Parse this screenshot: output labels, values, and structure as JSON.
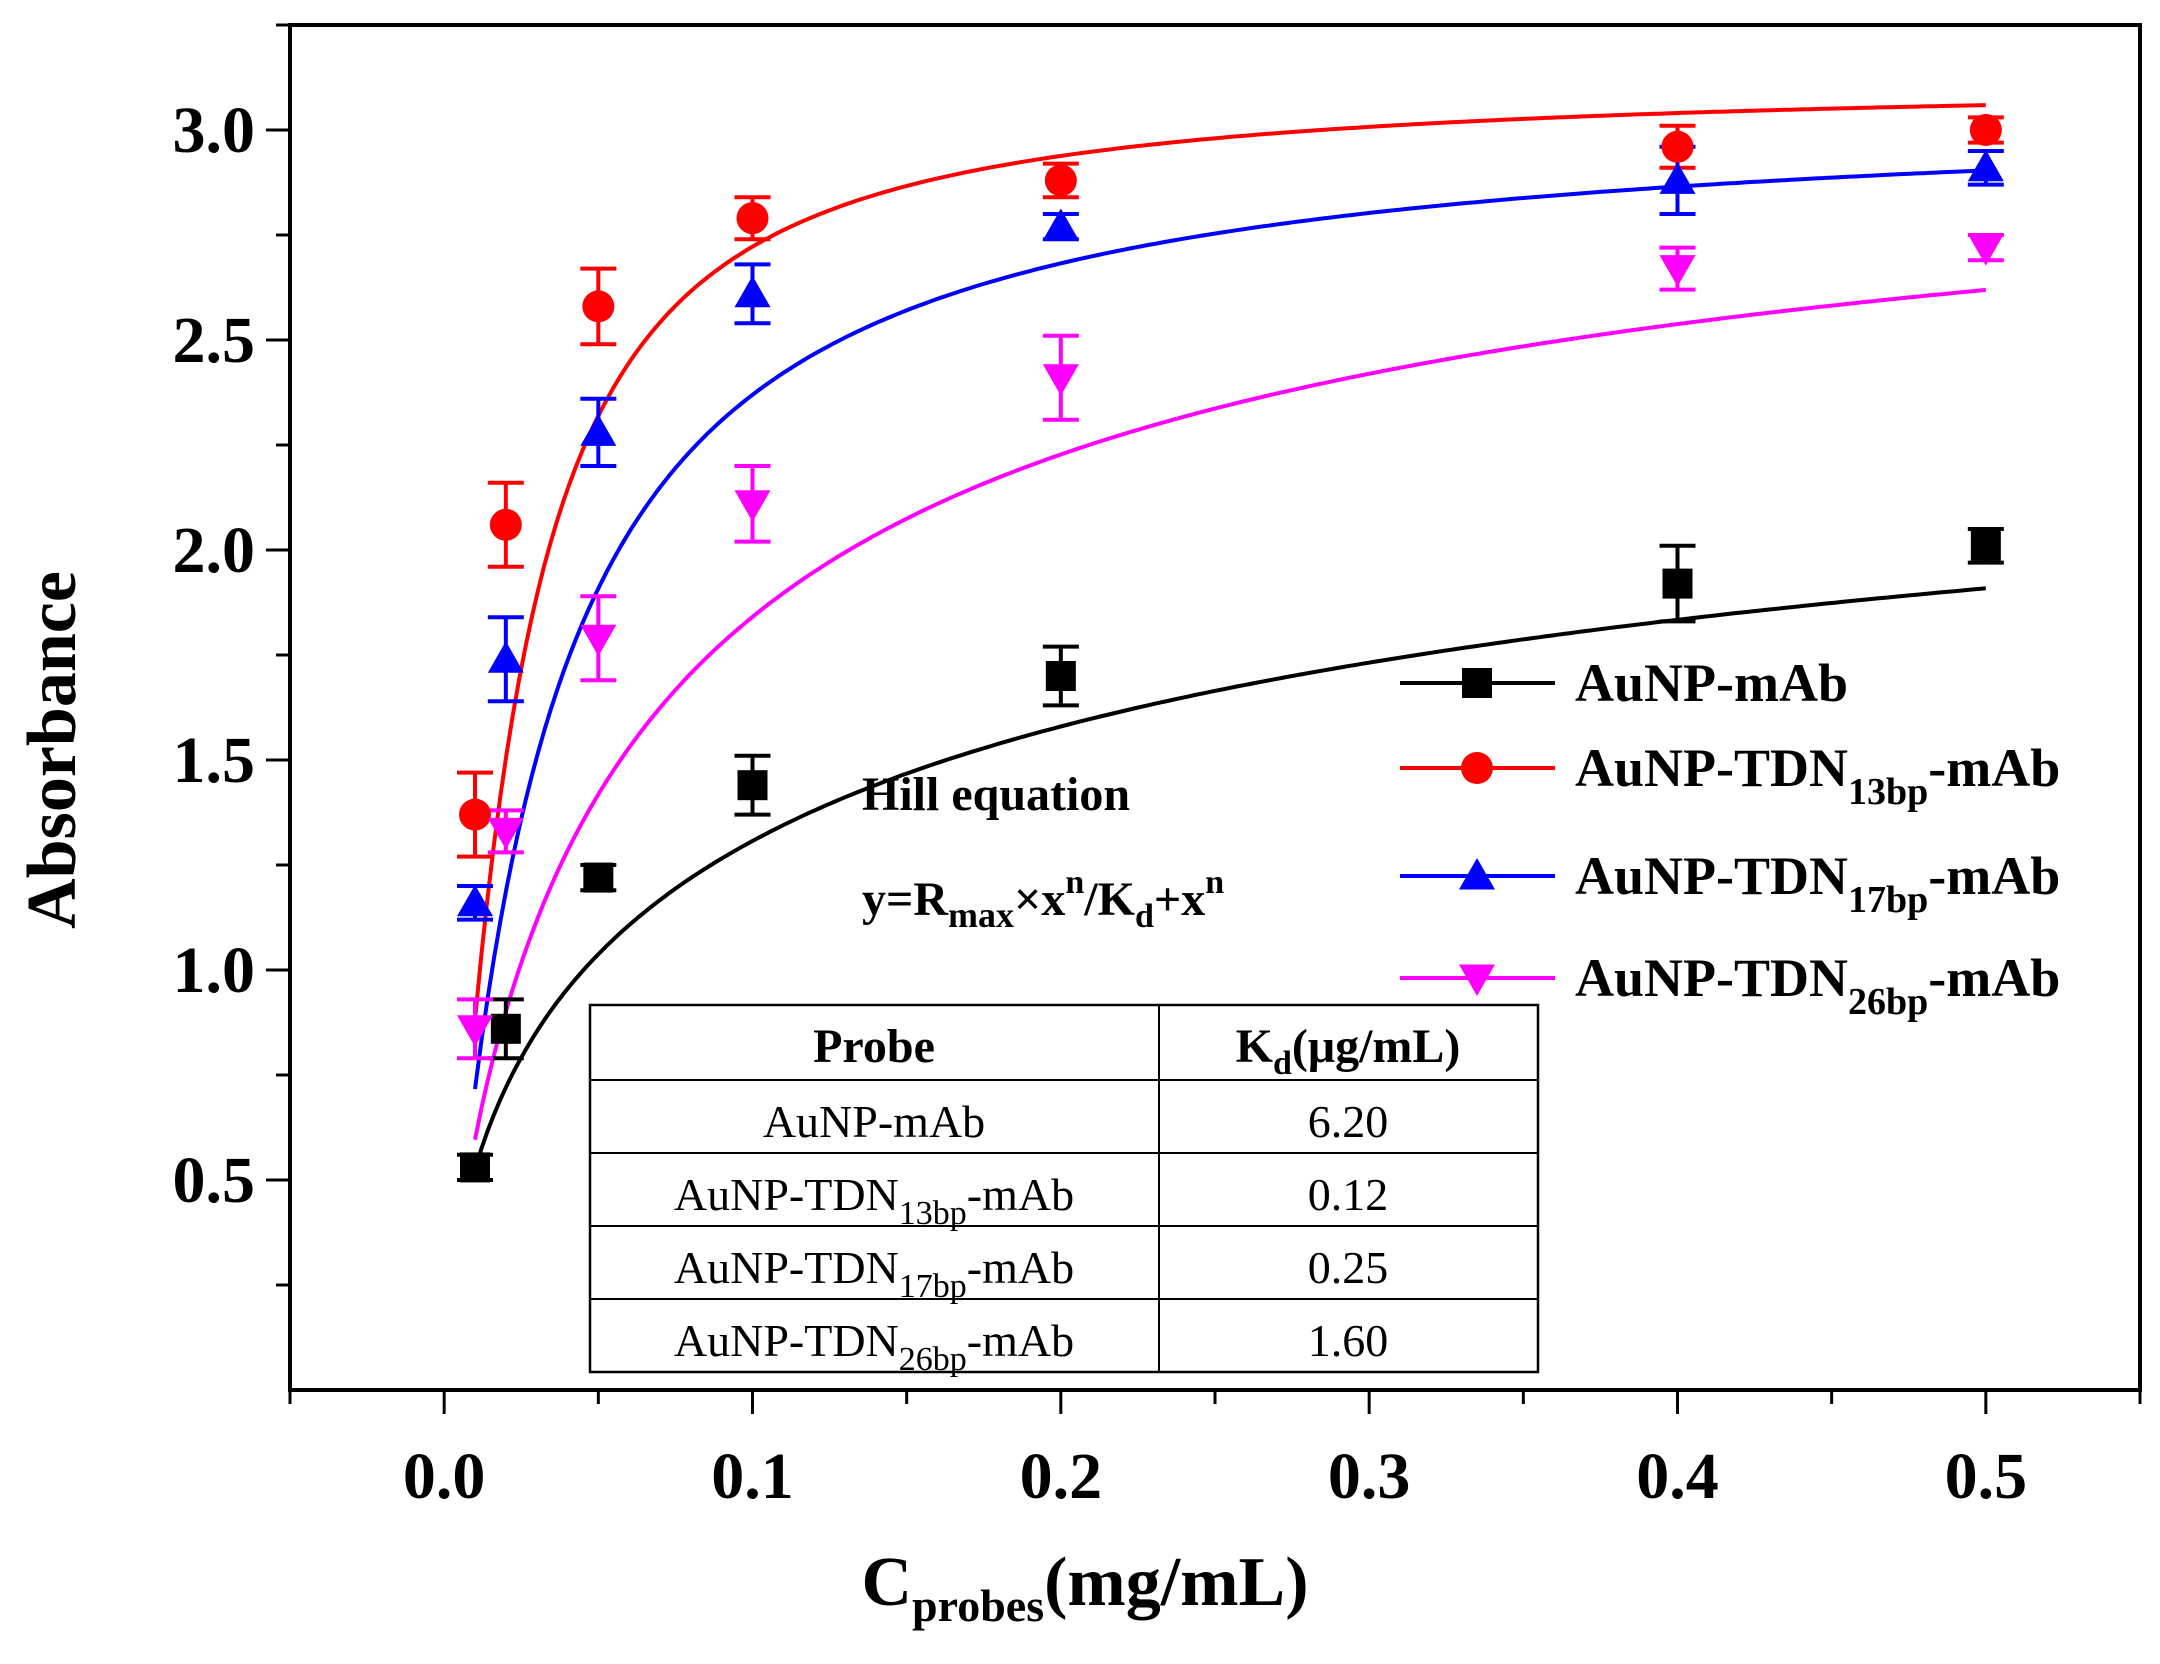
{
  "chart_data": {
    "type": "scatter",
    "xlabel": "C",
    "xlabel_sub": "probes",
    "xlabel_unit": "(mg/mL)",
    "ylabel": "Absorbance",
    "xlim": [
      -0.05,
      0.55
    ],
    "ylim": [
      0.0,
      3.25
    ],
    "x_ticks": [
      "0.0",
      "0.1",
      "0.2",
      "0.3",
      "0.4",
      "0.5"
    ],
    "y_ticks": [
      "0.5",
      "1.0",
      "1.5",
      "2.0",
      "2.5",
      "3.0"
    ],
    "grid": false,
    "legend_position": "right",
    "series": [
      {
        "name": "AuNP-mAb",
        "name_main": "AuNP-mAb",
        "name_sub": "",
        "name_tail": "",
        "color": "#000000",
        "marker": "square",
        "x": [
          0.01,
          0.02,
          0.05,
          0.1,
          0.2,
          0.4,
          0.5
        ],
        "y": [
          0.53,
          0.86,
          1.22,
          1.44,
          1.7,
          1.92,
          2.01
        ],
        "err": [
          0.03,
          0.07,
          0.03,
          0.07,
          0.07,
          0.09,
          0.04
        ],
        "fit": {
          "rmax": 2.69,
          "n": 0.59,
          "k": 0.11
        }
      },
      {
        "name": "AuNP-TDN13bp-mAb",
        "name_main": "AuNP-TDN",
        "name_sub": "13bp",
        "name_tail": "-mAb",
        "color": "#ff0000",
        "marker": "circle",
        "x": [
          0.01,
          0.02,
          0.05,
          0.1,
          0.2,
          0.4,
          0.5
        ],
        "y": [
          1.37,
          2.06,
          2.58,
          2.79,
          2.88,
          2.96,
          3.0
        ],
        "err": [
          0.1,
          0.1,
          0.09,
          0.05,
          0.04,
          0.05,
          0.03
        ],
        "fit": {
          "rmax": 3.12,
          "n": 1.24,
          "k": 0.0212
        }
      },
      {
        "name": "AuNP-TDN17bp-mAb",
        "name_main": "AuNP-TDN",
        "name_sub": "17bp",
        "name_tail": "-mAb",
        "color": "#0000ff",
        "marker": "triangle-up",
        "x": [
          0.01,
          0.02,
          0.05,
          0.1,
          0.2,
          0.4,
          0.5
        ],
        "y": [
          1.16,
          1.74,
          2.28,
          2.61,
          2.77,
          2.88,
          2.91
        ],
        "err": [
          0.04,
          0.1,
          0.08,
          0.07,
          0.03,
          0.08,
          0.04
        ],
        "fit": {
          "rmax": 3.06,
          "n": 1.05,
          "k": 0.0309
        }
      },
      {
        "name": "AuNP-TDN26bp-mAb",
        "name_main": "AuNP-TDN",
        "name_sub": "26bp",
        "name_tail": "-mAb",
        "color": "#ff00ff",
        "marker": "triangle-down",
        "x": [
          0.01,
          0.02,
          0.05,
          0.1,
          0.2,
          0.4,
          0.5
        ],
        "y": [
          0.86,
          1.33,
          1.79,
          2.11,
          2.41,
          2.67,
          2.72
        ],
        "err": [
          0.07,
          0.05,
          0.1,
          0.09,
          0.1,
          0.05,
          0.03
        ],
        "fit": {
          "rmax": 3.15,
          "n": 0.78,
          "k": 0.0646
        }
      }
    ],
    "annotation": {
      "line1": "Hill equation",
      "eq_y": "y=R",
      "eq_max": "max",
      "eq_x": "×x",
      "eq_n1": "n",
      "eq_div": "/K",
      "eq_d": "d",
      "eq_plus": "+x",
      "eq_n2": "n"
    },
    "table": {
      "headers": {
        "probe": "Probe",
        "kd_main": "K",
        "kd_sub": "d",
        "kd_unit": "(μg/mL)"
      },
      "rows": [
        {
          "main": "AuNP-mAb",
          "sub": "",
          "tail": "",
          "kd": "6.20"
        },
        {
          "main": "AuNP-TDN",
          "sub": "13bp",
          "tail": "-mAb",
          "kd": "0.12"
        },
        {
          "main": "AuNP-TDN",
          "sub": "17bp",
          "tail": "-mAb",
          "kd": "0.25"
        },
        {
          "main": "AuNP-TDN",
          "sub": "26bp",
          "tail": "-mAb",
          "kd": "1.60"
        }
      ]
    }
  }
}
